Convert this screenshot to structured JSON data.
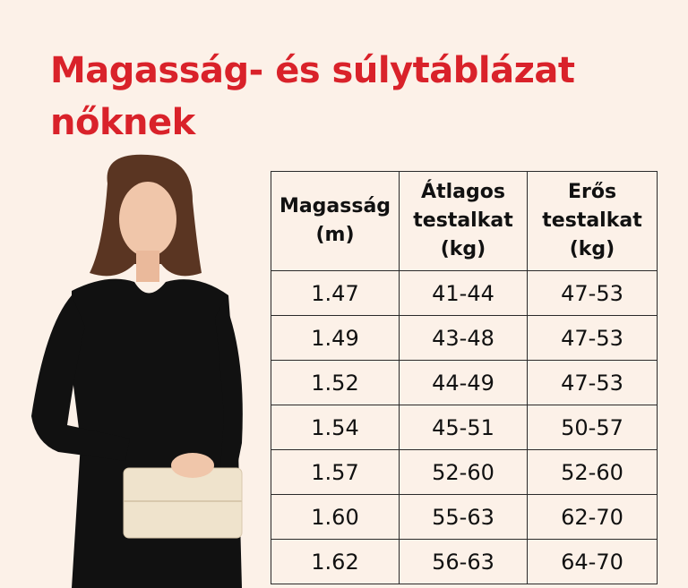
{
  "title": "Magasság- és súlytáblázat nőknek",
  "colors": {
    "title": "#d9222a",
    "background": "#fcf1e8",
    "dress": "#111111",
    "clutch": "#efe3cc"
  },
  "table": {
    "headers": [
      "Magasság (m)",
      "Átlagos testalkat (kg)",
      "Erős testalkat (kg)"
    ],
    "rows": [
      [
        "1.47",
        "41-44",
        "47-53"
      ],
      [
        "1.49",
        "43-48",
        "47-53"
      ],
      [
        "1.52",
        "44-49",
        "47-53"
      ],
      [
        "1.54",
        "45-51",
        "50-57"
      ],
      [
        "1.57",
        "52-60",
        "52-60"
      ],
      [
        "1.60",
        "55-63",
        "62-70"
      ],
      [
        "1.62",
        "56-63",
        "64-70"
      ]
    ]
  }
}
